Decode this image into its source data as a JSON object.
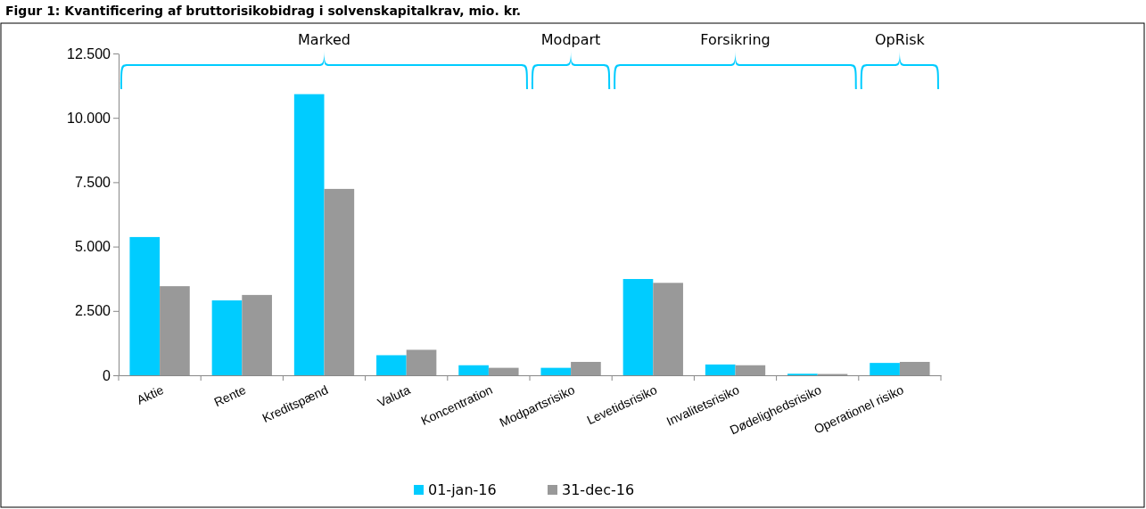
{
  "chart_data": {
    "type": "bar",
    "title": "Figur 1: Kvantificering af bruttorisikobidrag i solvenskapitalkrav, mio. kr.",
    "categories": [
      "Aktie",
      "Rente",
      "Kreditspænd",
      "Valuta",
      "Koncentration",
      "Modpartsrisiko",
      "Levetidsrisiko",
      "Invalitetsrisiko",
      "Dødelighedsrisiko",
      "Operationel risiko"
    ],
    "series": [
      {
        "name": "01-jan-16",
        "color": "#00ccff",
        "values": [
          5370,
          2910,
          10920,
          780,
          390,
          290,
          3740,
          420,
          60,
          480
        ]
      },
      {
        "name": "31-dec-16",
        "color": "#999999",
        "values": [
          3460,
          3120,
          7240,
          990,
          290,
          520,
          3590,
          390,
          50,
          520
        ]
      }
    ],
    "ylim": [
      0,
      12500
    ],
    "yticks": [
      0,
      {
        "value": 2500,
        "label": "2.500"
      },
      {
        "value": 5000,
        "label": "5.000"
      },
      {
        "value": 7500,
        "label": "7.500"
      },
      {
        "value": 10000,
        "label": "10.000"
      },
      {
        "value": 12500,
        "label": "12.500"
      }
    ],
    "annotations": [
      "Marked",
      "Modpart",
      "Forsikring",
      "OpRisk"
    ],
    "legend": "bottom",
    "grid": false
  }
}
